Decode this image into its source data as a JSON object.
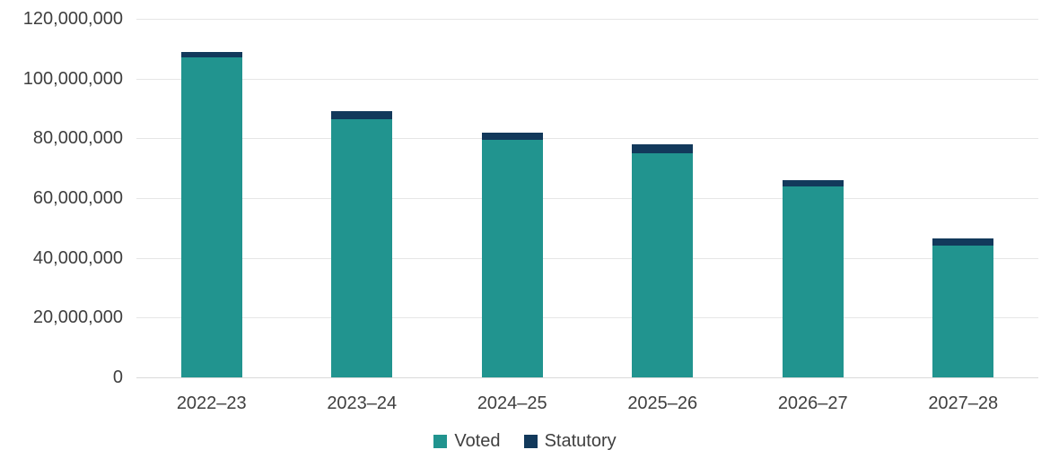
{
  "chart_data": {
    "type": "bar",
    "stacked": true,
    "title": "",
    "xlabel": "",
    "ylabel": "",
    "categories": [
      "2022–23",
      "2023–24",
      "2024–25",
      "2025–26",
      "2026–27",
      "2027–28"
    ],
    "series": [
      {
        "name": "Voted",
        "color": "#21948F",
        "values": [
          107000000,
          86500000,
          79500000,
          75000000,
          64000000,
          44000000
        ]
      },
      {
        "name": "Statutory",
        "color": "#12395B",
        "values": [
          2000000,
          2500000,
          2300000,
          3000000,
          2000000,
          2500000
        ]
      }
    ],
    "ylim": [
      0,
      120000000
    ],
    "ytick_step": 20000000,
    "ytick_labels": [
      "0",
      "20,000,000",
      "40,000,000",
      "60,000,000",
      "80,000,000",
      "100,000,000",
      "120,000,000"
    ],
    "grid": true,
    "legend_position": "bottom"
  },
  "colors": {
    "voted": "#21948F",
    "statutory": "#12395B",
    "gridline": "#e6e6e6",
    "baseline": "#d9d9d9",
    "text": "#3f3f3f",
    "background": "#ffffff"
  }
}
